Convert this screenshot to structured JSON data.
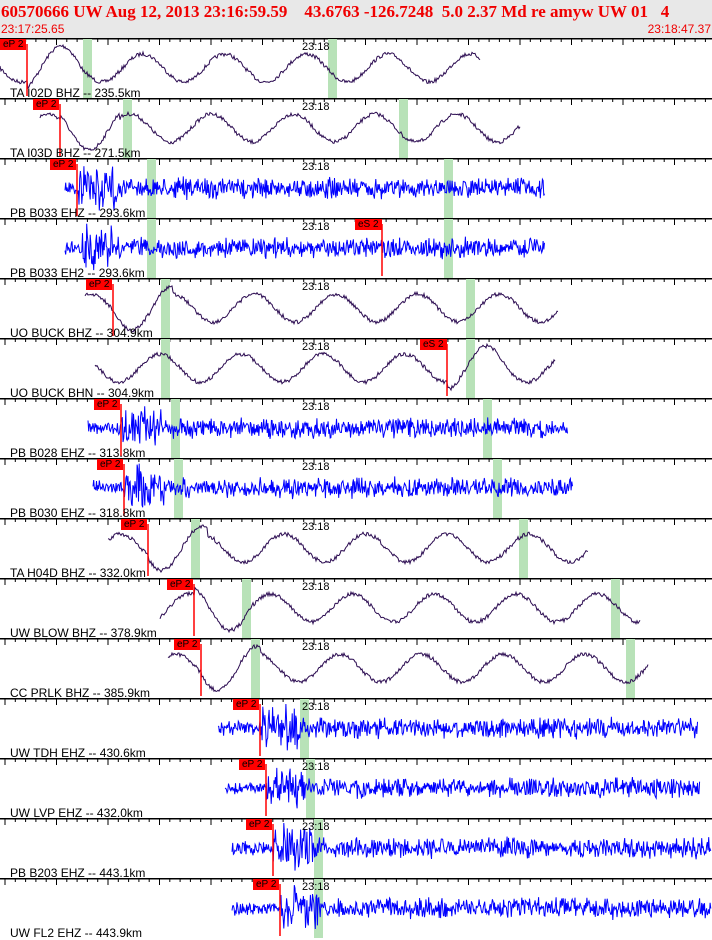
{
  "header": {
    "title": "60570666 UW Aug 12, 2013 23:16:59.59    43.6763 -126.7248  5.0 2.37 Md re amyw UW 01   4",
    "start_time": "23:17:25.65",
    "end_time": "23:18:47.37"
  },
  "colors": {
    "header_text": "#f00000",
    "pick": "#ff0000",
    "long_period_trace": "#2a0a50",
    "short_period_trace": "#0000ff",
    "theoretical_marker": "#b8e2b8"
  },
  "time_mark": "23:18",
  "channels": [
    {
      "label": "TA I02D BHZ -- 235.5km",
      "pick": "eP 2",
      "type": "long"
    },
    {
      "label": "TA I03D BHZ -- 271.5km",
      "pick": "eP 2",
      "type": "long"
    },
    {
      "label": "PB B033 EHZ -- 293.6km",
      "pick": "eP 2",
      "type": "short"
    },
    {
      "label": "PB B033 EH2 -- 293.6km",
      "pick": "eS 2",
      "type": "short"
    },
    {
      "label": "UO BUCK BHZ -- 304.9km",
      "pick": "eP 2",
      "type": "long"
    },
    {
      "label": "UO BUCK BHN -- 304.9km",
      "pick": "eS 2",
      "type": "long"
    },
    {
      "label": "PB B028 EHZ -- 313.8km",
      "pick": "eP 2",
      "type": "short"
    },
    {
      "label": "PB B030 EHZ -- 318.8km",
      "pick": "eP 2",
      "type": "short"
    },
    {
      "label": "TA H04D BHZ -- 332.0km",
      "pick": "eP 2",
      "type": "long"
    },
    {
      "label": "UW BLOW BHZ -- 378.9km",
      "pick": "eP 2",
      "type": "long"
    },
    {
      "label": "CC PRLK BHZ -- 385.9km",
      "pick": "eP 2",
      "type": "long"
    },
    {
      "label": "UW TDH EHZ -- 430.6km",
      "pick": "eP 2",
      "type": "short"
    },
    {
      "label": "UW LVP EHZ -- 432.0km",
      "pick": "eP 2",
      "type": "short"
    },
    {
      "label": "PB B203 EHZ -- 443.1km",
      "pick": "eP 2",
      "type": "short"
    },
    {
      "label": "UW FL2 EHZ -- 443.9km",
      "pick": "eP 2",
      "type": "short"
    }
  ]
}
